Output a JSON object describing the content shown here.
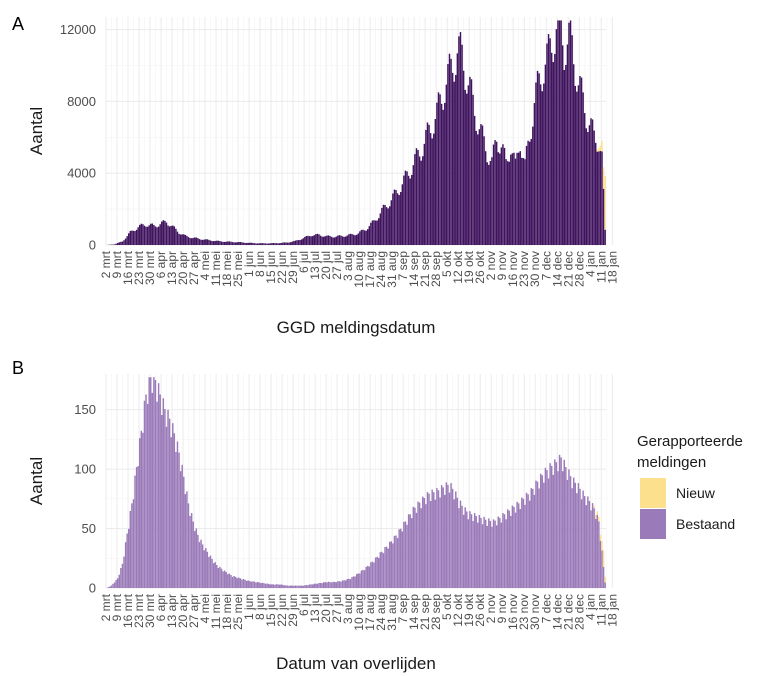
{
  "colors": {
    "nieuw": "#fde08e",
    "bestaand_a": "#3f135e",
    "bestaand_b": "#9a7ab8",
    "grid": "#ebebeb"
  },
  "legend": {
    "title_line1": "Gerapporteerde",
    "title_line2": "meldingen",
    "items": [
      "Nieuw",
      "Bestaand"
    ]
  },
  "x_tick_labels": [
    "2 mrt",
    "9 mrt",
    "16 mrt",
    "23 mrt",
    "30 mrt",
    "6 apr",
    "13 apr",
    "20 apr",
    "27 apr",
    "4 mei",
    "11 mei",
    "18 mei",
    "25 mei",
    "1 jun",
    "8 jun",
    "15 jun",
    "22 jun",
    "29 jun",
    "6 jul",
    "13 jul",
    "20 jul",
    "27 jul",
    "3 aug",
    "10 aug",
    "17 aug",
    "24 aug",
    "31 aug",
    "7 sep",
    "14 sep",
    "21 sep",
    "28 sep",
    "5 okt",
    "12 okt",
    "19 okt",
    "26 okt",
    "2 nov",
    "9 nov",
    "16 nov",
    "23 nov",
    "30 nov",
    "7 dec",
    "14 dec",
    "21 dec",
    "28 dec",
    "4 jan",
    "11 jan",
    "18 jan"
  ],
  "chart_data": [
    {
      "panel": "A",
      "type": "bar",
      "stacked": true,
      "xlabel": "GGD meldingsdatum",
      "ylabel": "Aantal",
      "ylim": [
        0,
        12700
      ],
      "yticks": [
        0,
        4000,
        8000,
        12000
      ],
      "grid": true,
      "x_start": "2 mrt",
      "x_end": "18 jan",
      "series": [
        {
          "name": "Bestaand",
          "color": "#3f135e",
          "anchors": [
            [
              0,
              0
            ],
            [
              5,
              40
            ],
            [
              10,
              200
            ],
            [
              15,
              700
            ],
            [
              20,
              1000
            ],
            [
              25,
              1150
            ],
            [
              30,
              1050
            ],
            [
              35,
              1200
            ],
            [
              38,
              1300
            ],
            [
              42,
              1000
            ],
            [
              46,
              700
            ],
            [
              50,
              500
            ],
            [
              55,
              400
            ],
            [
              60,
              330
            ],
            [
              65,
              270
            ],
            [
              70,
              220
            ],
            [
              75,
              190
            ],
            [
              80,
              170
            ],
            [
              85,
              150
            ],
            [
              90,
              120
            ],
            [
              95,
              100
            ],
            [
              100,
              90
            ],
            [
              105,
              95
            ],
            [
              110,
              110
            ],
            [
              115,
              140
            ],
            [
              120,
              220
            ],
            [
              125,
              380
            ],
            [
              130,
              550
            ],
            [
              135,
              560
            ],
            [
              140,
              480
            ],
            [
              145,
              470
            ],
            [
              150,
              500
            ],
            [
              155,
              560
            ],
            [
              160,
              650
            ],
            [
              165,
              900
            ],
            [
              170,
              1300
            ],
            [
              175,
              1900
            ],
            [
              180,
              2400
            ],
            [
              185,
              3000
            ],
            [
              190,
              3700
            ],
            [
              195,
              4500
            ],
            [
              200,
              5300
            ],
            [
              205,
              6300
            ],
            [
              210,
              7300
            ],
            [
              215,
              8800
            ],
            [
              220,
              10000
            ],
            [
              223,
              10800
            ],
            [
              226,
              10500
            ],
            [
              230,
              9000
            ],
            [
              234,
              7500
            ],
            [
              238,
              6200
            ],
            [
              242,
              5200
            ],
            [
              245,
              4500
            ],
            [
              248,
              6000
            ],
            [
              251,
              5500
            ],
            [
              254,
              4500
            ],
            [
              257,
              5600
            ],
            [
              260,
              4300
            ],
            [
              263,
              5900
            ],
            [
              266,
              4400
            ],
            [
              269,
              6000
            ],
            [
              272,
              8000
            ],
            [
              275,
              9000
            ],
            [
              278,
              10000
            ],
            [
              281,
              10500
            ],
            [
              284,
              11500
            ],
            [
              287,
              12500
            ],
            [
              289,
              12200
            ],
            [
              291,
              11000
            ],
            [
              293,
              11300
            ],
            [
              295,
              11500
            ],
            [
              297,
              10500
            ],
            [
              300,
              9000
            ],
            [
              303,
              8000
            ],
            [
              306,
              7000
            ],
            [
              310,
              6000
            ],
            [
              313,
              5800
            ],
            [
              315,
              4800
            ],
            [
              317,
              800
            ]
          ],
          "period": 7,
          "weekly_amp": 0.12
        },
        {
          "name": "Nieuw",
          "color": "#fde08e",
          "recent": [
            [
              312,
              100
            ],
            [
              313,
              200
            ],
            [
              314,
              300
            ],
            [
              315,
              600
            ],
            [
              316,
              1200
            ],
            [
              317,
              3000
            ]
          ]
        }
      ]
    },
    {
      "panel": "B",
      "type": "bar",
      "stacked": true,
      "xlabel": "Datum van overlijden",
      "ylabel": "Aantal",
      "ylim": [
        0,
        180
      ],
      "yticks": [
        0,
        50,
        100,
        150
      ],
      "grid": true,
      "x_start": "2 mrt",
      "x_end": "18 jan",
      "series": [
        {
          "name": "Bestaand",
          "color": "#9a7ab8",
          "anchors": [
            [
              0,
              0
            ],
            [
              3,
              2
            ],
            [
              7,
              8
            ],
            [
              10,
              20
            ],
            [
              13,
              45
            ],
            [
              16,
              70
            ],
            [
              19,
              100
            ],
            [
              22,
              130
            ],
            [
              25,
              160
            ],
            [
              28,
              178
            ],
            [
              31,
              172
            ],
            [
              34,
              160
            ],
            [
              37,
              148
            ],
            [
              40,
              140
            ],
            [
              43,
              128
            ],
            [
              46,
              112
            ],
            [
              49,
              92
            ],
            [
              52,
              70
            ],
            [
              55,
              55
            ],
            [
              58,
              44
            ],
            [
              61,
              36
            ],
            [
              64,
              30
            ],
            [
              67,
              24
            ],
            [
              70,
              19
            ],
            [
              75,
              14
            ],
            [
              80,
              10
            ],
            [
              85,
              8
            ],
            [
              90,
              6
            ],
            [
              95,
              5
            ],
            [
              100,
              4
            ],
            [
              105,
              3
            ],
            [
              110,
              3
            ],
            [
              115,
              2
            ],
            [
              120,
              2
            ],
            [
              125,
              2
            ],
            [
              130,
              3
            ],
            [
              135,
              4
            ],
            [
              140,
              5
            ],
            [
              145,
              5
            ],
            [
              150,
              6
            ],
            [
              155,
              8
            ],
            [
              160,
              12
            ],
            [
              165,
              17
            ],
            [
              170,
              23
            ],
            [
              175,
              30
            ],
            [
              180,
              37
            ],
            [
              185,
              45
            ],
            [
              190,
              55
            ],
            [
              195,
              65
            ],
            [
              200,
              72
            ],
            [
              205,
              78
            ],
            [
              210,
              80
            ],
            [
              215,
              84
            ],
            [
              218,
              86
            ],
            [
              221,
              80
            ],
            [
              224,
              72
            ],
            [
              227,
              66
            ],
            [
              230,
              62
            ],
            [
              234,
              60
            ],
            [
              238,
              58
            ],
            [
              242,
              56
            ],
            [
              246,
              55
            ],
            [
              250,
              58
            ],
            [
              254,
              62
            ],
            [
              258,
              66
            ],
            [
              262,
              70
            ],
            [
              266,
              75
            ],
            [
              270,
              80
            ],
            [
              274,
              88
            ],
            [
              278,
              95
            ],
            [
              282,
              100
            ],
            [
              286,
              104
            ],
            [
              289,
              108
            ],
            [
              292,
              100
            ],
            [
              296,
              90
            ],
            [
              300,
              84
            ],
            [
              304,
              76
            ],
            [
              307,
              72
            ],
            [
              310,
              66
            ],
            [
              313,
              55
            ],
            [
              315,
              30
            ],
            [
              317,
              5
            ]
          ],
          "period": 3,
          "weekly_amp": 0.07
        },
        {
          "name": "Nieuw",
          "color": "#fde08e",
          "recent": [
            [
              310,
              2
            ],
            [
              311,
              3
            ],
            [
              312,
              3
            ],
            [
              313,
              4
            ],
            [
              314,
              5
            ],
            [
              315,
              8
            ],
            [
              316,
              14
            ],
            [
              317,
              5
            ]
          ]
        }
      ]
    }
  ]
}
